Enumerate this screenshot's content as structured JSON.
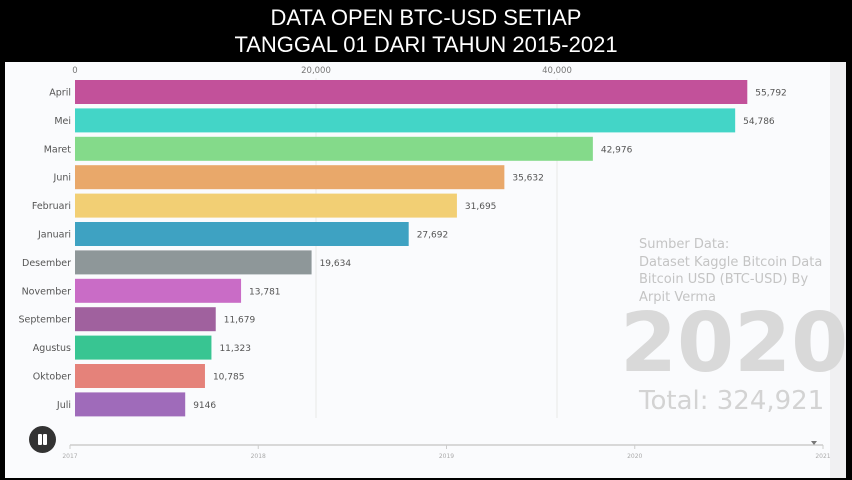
{
  "title_lines": [
    "DATA OPEN BTC-USD SETIAP",
    "TANGGAL 01 DARI TAHUN 2015-2021"
  ],
  "source_text": [
    "Sumber Data:",
    "Dataset Kaggle Bitcoin Data",
    "Bitcoin USD (BTC-USD) By",
    "Arpit Verma"
  ],
  "year_label": "2020",
  "total_label": "Total: 324,921",
  "timeline": {
    "ticks": [
      "2017",
      "2018",
      "2019",
      "2020",
      "2021"
    ],
    "position": 1.0
  },
  "chart_data": {
    "type": "bar",
    "orientation": "horizontal",
    "categories": [
      "April",
      "Mei",
      "Maret",
      "Juni",
      "Februari",
      "Januari",
      "Desember",
      "November",
      "September",
      "Agustus",
      "Oktober",
      "Juli"
    ],
    "values": [
      55792,
      54786,
      42976,
      35632,
      31695,
      27692,
      19634,
      13781,
      11679,
      11323,
      10785,
      9146
    ],
    "value_labels": [
      "55,792",
      "54,786",
      "42,976",
      "35,632",
      "31,695",
      "27,692",
      "19,634",
      "13,781",
      "11,679",
      "11,323",
      "10,785",
      "9146"
    ],
    "colors": [
      "#c2519a",
      "#43d5c7",
      "#84da8a",
      "#e9a86a",
      "#f2cf74",
      "#3ea2c2",
      "#8e9799",
      "#c96cc6",
      "#a0619e",
      "#38c592",
      "#e5827a",
      "#9f6bba"
    ],
    "xticks": [
      0,
      20000,
      40000
    ],
    "xtick_labels": [
      "0",
      "20,000",
      "40,000"
    ],
    "xlim": [
      0,
      56000
    ]
  }
}
